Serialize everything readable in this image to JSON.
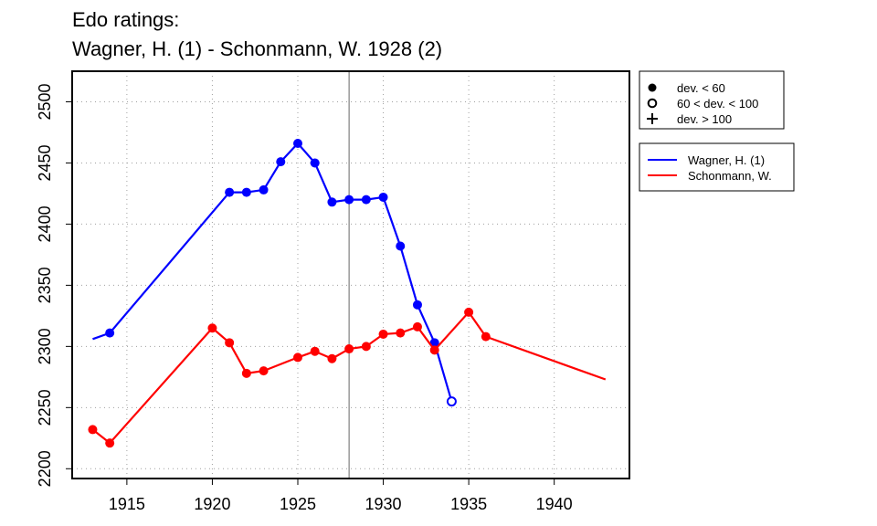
{
  "chart_data": {
    "type": "line",
    "title_lines": [
      "Edo ratings:",
      "Wagner, H. (1) - Schonmann, W. 1928 (2)"
    ],
    "xlabel": "",
    "ylabel": "",
    "xlim": [
      1911.8,
      1944.4
    ],
    "ylim": [
      2192,
      2525
    ],
    "x_ticks": [
      1915,
      1920,
      1925,
      1930,
      1935,
      1940
    ],
    "y_ticks": [
      2200,
      2250,
      2300,
      2350,
      2400,
      2450,
      2500
    ],
    "grid": true,
    "reference_line_x": 1928,
    "series": [
      {
        "name": "Wagner, H. (1)",
        "color": "#0000ff",
        "line": [
          [
            1913,
            2306
          ],
          [
            1914,
            2311
          ],
          [
            1921,
            2426
          ],
          [
            1922,
            2426
          ],
          [
            1923,
            2428
          ],
          [
            1924,
            2451
          ],
          [
            1925,
            2466
          ],
          [
            1926,
            2450
          ],
          [
            1927,
            2418
          ],
          [
            1928,
            2420
          ],
          [
            1929,
            2420
          ],
          [
            1930,
            2422
          ],
          [
            1931,
            2382
          ],
          [
            1932,
            2334
          ],
          [
            1933,
            2303
          ],
          [
            1934,
            2255
          ]
        ],
        "points": [
          {
            "x": 1914,
            "y": 2311,
            "dev": "low"
          },
          {
            "x": 1921,
            "y": 2426,
            "dev": "low"
          },
          {
            "x": 1922,
            "y": 2426,
            "dev": "low"
          },
          {
            "x": 1923,
            "y": 2428,
            "dev": "low"
          },
          {
            "x": 1924,
            "y": 2451,
            "dev": "low"
          },
          {
            "x": 1925,
            "y": 2466,
            "dev": "low"
          },
          {
            "x": 1926,
            "y": 2450,
            "dev": "low"
          },
          {
            "x": 1927,
            "y": 2418,
            "dev": "low"
          },
          {
            "x": 1928,
            "y": 2420,
            "dev": "low"
          },
          {
            "x": 1929,
            "y": 2420,
            "dev": "low"
          },
          {
            "x": 1930,
            "y": 2422,
            "dev": "low"
          },
          {
            "x": 1931,
            "y": 2382,
            "dev": "low"
          },
          {
            "x": 1932,
            "y": 2334,
            "dev": "low"
          },
          {
            "x": 1933,
            "y": 2303,
            "dev": "low"
          },
          {
            "x": 1934,
            "y": 2255,
            "dev": "mid"
          }
        ]
      },
      {
        "name": "Schonmann, W.",
        "color": "#ff0000",
        "line": [
          [
            1913,
            2232
          ],
          [
            1914,
            2221
          ],
          [
            1920,
            2315
          ],
          [
            1921,
            2303
          ],
          [
            1922,
            2278
          ],
          [
            1923,
            2280
          ],
          [
            1925,
            2291
          ],
          [
            1926,
            2296
          ],
          [
            1927,
            2290
          ],
          [
            1928,
            2298
          ],
          [
            1929,
            2300
          ],
          [
            1930,
            2310
          ],
          [
            1931,
            2311
          ],
          [
            1932,
            2316
          ],
          [
            1933,
            2297
          ],
          [
            1935,
            2328
          ],
          [
            1936,
            2308
          ],
          [
            1943,
            2273
          ]
        ],
        "points": [
          {
            "x": 1913,
            "y": 2232,
            "dev": "low"
          },
          {
            "x": 1914,
            "y": 2221,
            "dev": "low"
          },
          {
            "x": 1920,
            "y": 2315,
            "dev": "low"
          },
          {
            "x": 1921,
            "y": 2303,
            "dev": "low"
          },
          {
            "x": 1922,
            "y": 2278,
            "dev": "low"
          },
          {
            "x": 1923,
            "y": 2280,
            "dev": "low"
          },
          {
            "x": 1925,
            "y": 2291,
            "dev": "low"
          },
          {
            "x": 1926,
            "y": 2296,
            "dev": "low"
          },
          {
            "x": 1927,
            "y": 2290,
            "dev": "low"
          },
          {
            "x": 1928,
            "y": 2298,
            "dev": "low"
          },
          {
            "x": 1929,
            "y": 2300,
            "dev": "low"
          },
          {
            "x": 1930,
            "y": 2310,
            "dev": "low"
          },
          {
            "x": 1931,
            "y": 2311,
            "dev": "low"
          },
          {
            "x": 1932,
            "y": 2316,
            "dev": "low"
          },
          {
            "x": 1933,
            "y": 2297,
            "dev": "low"
          },
          {
            "x": 1935,
            "y": 2328,
            "dev": "low"
          },
          {
            "x": 1936,
            "y": 2308,
            "dev": "low"
          }
        ]
      }
    ],
    "legend_symbols": [
      {
        "symbol": "filled-circle",
        "label": "dev. < 60"
      },
      {
        "symbol": "open-circle",
        "label": "60 < dev. < 100"
      },
      {
        "symbol": "plus",
        "label": "dev. > 100"
      }
    ],
    "legend_placement": "right-outside"
  }
}
